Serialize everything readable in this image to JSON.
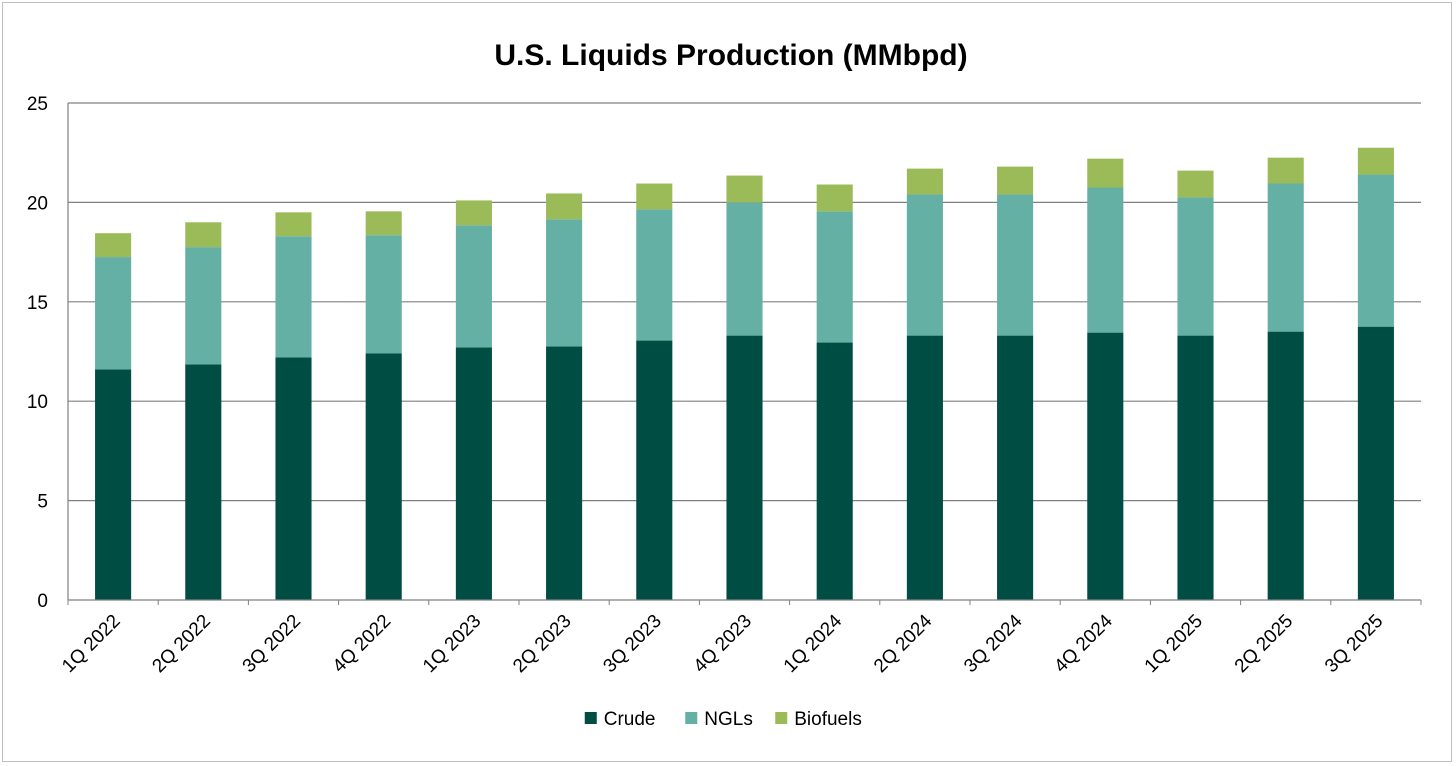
{
  "chart_data": {
    "type": "bar",
    "stacked": true,
    "title": "U.S. Liquids Production (MMbpd)",
    "xlabel": "",
    "ylabel": "",
    "ylim": [
      0,
      25
    ],
    "yticks": [
      0,
      5,
      10,
      15,
      20,
      25
    ],
    "grid": true,
    "legend_position": "bottom-center",
    "categories": [
      "1Q 2022",
      "2Q 2022",
      "3Q 2022",
      "4Q 2022",
      "1Q 2023",
      "2Q 2023",
      "3Q 2023",
      "4Q 2023",
      "1Q 2024",
      "2Q 2024",
      "3Q 2024",
      "4Q 2024",
      "1Q 2025",
      "2Q 2025",
      "3Q 2025"
    ],
    "series": [
      {
        "name": "Crude",
        "color": "#004d43",
        "values": [
          11.6,
          11.85,
          12.2,
          12.4,
          12.7,
          12.75,
          13.05,
          13.3,
          12.95,
          13.3,
          13.3,
          13.45,
          13.3,
          13.5,
          13.75
        ]
      },
      {
        "name": "NGLs",
        "color": "#64b0a5",
        "values": [
          5.65,
          5.9,
          6.1,
          5.95,
          6.15,
          6.4,
          6.6,
          6.7,
          6.6,
          7.1,
          7.1,
          7.3,
          6.95,
          7.45,
          7.65
        ]
      },
      {
        "name": "Biofuels",
        "color": "#9bbb59",
        "values": [
          1.2,
          1.25,
          1.2,
          1.2,
          1.25,
          1.3,
          1.3,
          1.35,
          1.35,
          1.3,
          1.4,
          1.45,
          1.35,
          1.3,
          1.35
        ]
      }
    ]
  }
}
